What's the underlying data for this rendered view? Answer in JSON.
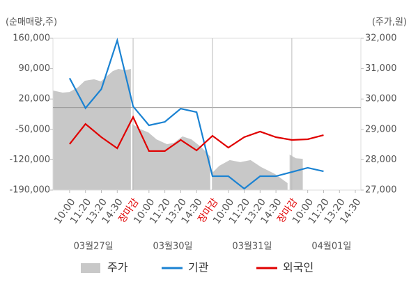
{
  "chart_data": {
    "type": "line",
    "y_label": "(순매매량,주)",
    "y2_label": "(주가,원)",
    "xlim": [
      -1.05,
      18.35
    ],
    "xticks": [
      {
        "value": 0,
        "label": "10:00"
      },
      {
        "value": 1,
        "label": "11:20"
      },
      {
        "value": 2,
        "label": "13:20"
      },
      {
        "value": 3,
        "label": "14:30"
      },
      {
        "value": 4,
        "label": "장마감",
        "color": "#e00000"
      },
      {
        "value": 5,
        "label": "10:00"
      },
      {
        "value": 6,
        "label": "11:20"
      },
      {
        "value": 7,
        "label": "13:20"
      },
      {
        "value": 8,
        "label": "14:30"
      },
      {
        "value": 9,
        "label": "장마감",
        "color": "#e00000"
      },
      {
        "value": 10,
        "label": "10:00"
      },
      {
        "value": 11,
        "label": "11:20"
      },
      {
        "value": 12,
        "label": "13:20"
      },
      {
        "value": 13,
        "label": "14:30"
      },
      {
        "value": 14,
        "label": "장마감",
        "color": "#e00000"
      },
      {
        "value": 15,
        "label": "10:00"
      },
      {
        "value": 16,
        "label": "11:20"
      },
      {
        "value": 17,
        "label": "13:20"
      },
      {
        "value": 18,
        "label": "14:30"
      }
    ],
    "date_labels": [
      "03월27일",
      "03월30일",
      "03월31일",
      "04월01일"
    ],
    "ylim": [
      -190000,
      160000
    ],
    "yticks": [
      {
        "value": 160000,
        "label": "160,000"
      },
      {
        "value": 90000,
        "label": "90,000"
      },
      {
        "value": 20000,
        "label": "20,000"
      },
      {
        "value": -50000,
        "label": "-50,000"
      },
      {
        "value": -120000,
        "label": "-120,000"
      },
      {
        "value": -190000,
        "label": "-190,000"
      }
    ],
    "y2lim": [
      27000,
      32000
    ],
    "y2ticks": [
      {
        "value": 32000,
        "label": "32,000"
      },
      {
        "value": 31000,
        "label": "31,000"
      },
      {
        "value": 30000,
        "label": "30,000"
      },
      {
        "value": 29000,
        "label": "29,000"
      },
      {
        "value": 28000,
        "label": "28,000"
      },
      {
        "value": 27000,
        "label": "27,000"
      }
    ],
    "series": [
      {
        "name": "주가",
        "kind": "area",
        "axis": "y2",
        "color": "#c8c8c8",
        "x": [
          -1.05,
          -0.44,
          0,
          0.53,
          0.96,
          1.54,
          1.97,
          2.41,
          2.72,
          3.07,
          3.51,
          3.86,
          null,
          3.95,
          4.39,
          4.96,
          5.48,
          6.14,
          6.58,
          7.11,
          7.68,
          8.33,
          8.86,
          null,
          8.99,
          9.43,
          10.09,
          10.75,
          11.4,
          12.06,
          12.94,
          13.73,
          null,
          13.86,
          14.25,
          14.69
        ],
        "values": [
          30280,
          30210,
          30230,
          30390,
          30600,
          30650,
          30580,
          30780,
          30920,
          30990,
          30950,
          30990,
          null,
          29180,
          29020,
          28900,
          28670,
          28510,
          28560,
          28770,
          28670,
          28400,
          28100,
          null,
          27570,
          27800,
          27990,
          27920,
          27990,
          27760,
          27530,
          27230,
          null,
          28170,
          28050,
          28030
        ]
      },
      {
        "name": "기관",
        "kind": "line",
        "color": "#1a82d2",
        "x": [
          0,
          1,
          2,
          3,
          4,
          5,
          6,
          7,
          8,
          9,
          10,
          11,
          12,
          13,
          14,
          15,
          16
        ],
        "values": [
          68000,
          -1000,
          42800,
          155200,
          3000,
          -40700,
          -32700,
          -2200,
          -10200,
          -157900,
          -158000,
          -186800,
          -158000,
          -158000,
          -148300,
          -138600,
          -146700
        ]
      },
      {
        "name": "외국인",
        "kind": "line",
        "color": "#e00000",
        "x": [
          0,
          1,
          2,
          3,
          4,
          5,
          6,
          7,
          8,
          9,
          10,
          11,
          12,
          13,
          14,
          15,
          16
        ],
        "values": [
          -84000,
          -37500,
          -68000,
          -93700,
          -21400,
          -100000,
          -100000,
          -74400,
          -98500,
          -64800,
          -92100,
          -68000,
          -55100,
          -68000,
          -74400,
          -72800,
          -63200
        ]
      }
    ]
  }
}
